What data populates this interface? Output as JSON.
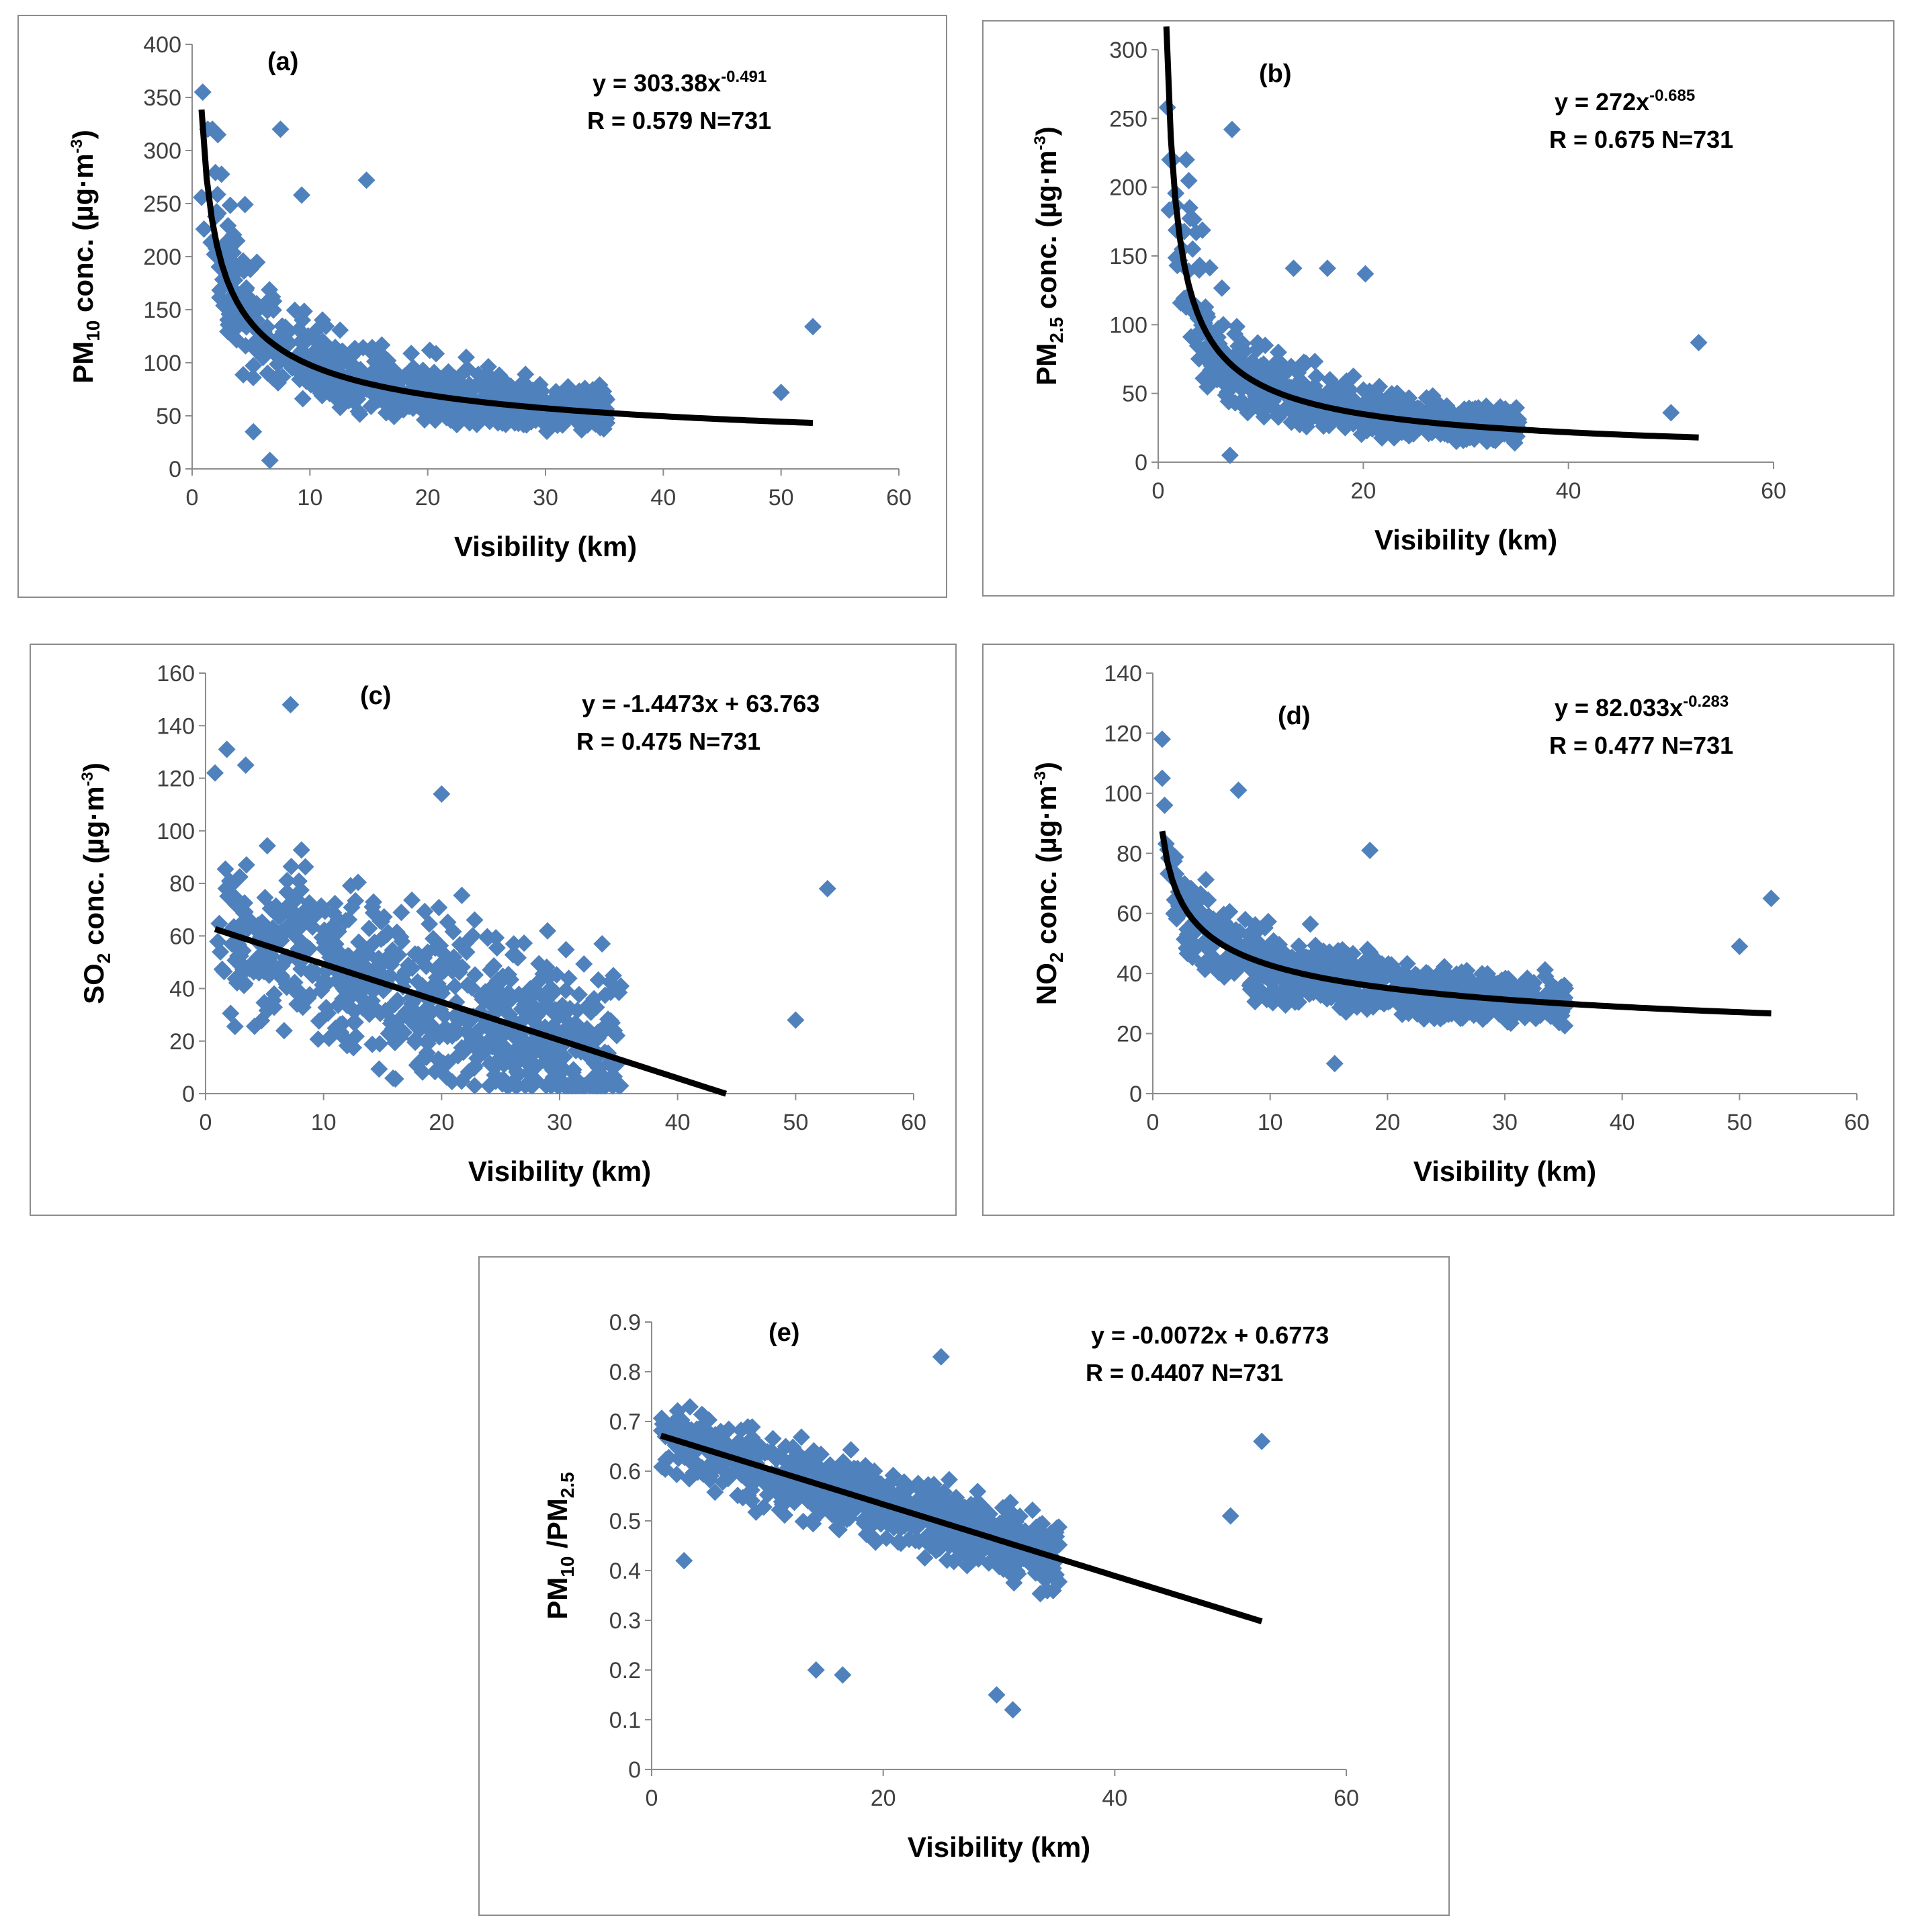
{
  "colors": {
    "marker": "#4f81bd",
    "fit": "#000000",
    "axis": "#8c8c8c"
  },
  "chart_data": [
    {
      "id": "a",
      "type": "scatter",
      "panel_label": "(a)",
      "xlabel": "Visibility (km)",
      "ylabel": {
        "prefix": "PM",
        "sub": "10",
        "rest": " conc. (µg·m",
        "sup": "-3",
        "end": ")"
      },
      "xlim": [
        0,
        60
      ],
      "xticks": [
        0,
        10,
        20,
        30,
        40,
        50,
        60
      ],
      "ylim": [
        0,
        400
      ],
      "yticks": [
        0,
        50,
        100,
        150,
        200,
        250,
        300,
        350,
        400
      ],
      "equation": {
        "main": "y = 303.38x",
        "sup": "-0.491"
      },
      "stats": "R = 0.579  N=731",
      "fit": {
        "kind": "power",
        "a": 303.38,
        "b": -0.491,
        "xmin": 0.8,
        "xmax": 52.7
      },
      "cloud": {
        "n": 731,
        "seed": 11,
        "kind": "power",
        "a": 303.38,
        "b": -0.491,
        "noise": 0.34,
        "ymin": 8,
        "ymax": 320
      },
      "extra_points": [
        [
          0.9,
          355
        ],
        [
          7.5,
          320
        ],
        [
          14.8,
          272
        ],
        [
          9.3,
          258
        ],
        [
          50,
          72
        ],
        [
          52.7,
          134
        ],
        [
          6.6,
          8
        ],
        [
          5.2,
          35
        ]
      ]
    },
    {
      "id": "b",
      "type": "scatter",
      "panel_label": "(b)",
      "xlabel": "Visibility (km)",
      "ylabel": {
        "prefix": "PM",
        "sub": "2.5",
        "rest": " conc. (µg·m",
        "sup": "-3",
        "end": ")"
      },
      "xlim": [
        0,
        60
      ],
      "xticks": [
        0,
        20,
        40,
        60
      ],
      "ylim": [
        0,
        300
      ],
      "yticks": [
        0,
        50,
        100,
        150,
        200,
        250,
        300
      ],
      "equation": {
        "main": "y = 272x",
        "sup": "-0.685"
      },
      "stats": "R = 0.675  N=731",
      "fit": {
        "kind": "power",
        "a": 272,
        "b": -0.685,
        "xmin": 0.8,
        "xmax": 52.7
      },
      "cloud": {
        "n": 731,
        "seed": 23,
        "kind": "power",
        "a": 272,
        "b": -0.685,
        "noise": 0.42,
        "ymin": 6,
        "ymax": 220
      },
      "extra_points": [
        [
          0.9,
          258
        ],
        [
          7.2,
          242
        ],
        [
          50,
          36
        ],
        [
          52.7,
          87
        ],
        [
          7,
          5
        ],
        [
          16.5,
          141
        ],
        [
          20.2,
          137
        ],
        [
          13.2,
          141
        ]
      ]
    },
    {
      "id": "c",
      "type": "scatter",
      "panel_label": "(c)",
      "xlabel": "Visibility (km)",
      "ylabel": {
        "prefix": "SO",
        "sub": "2",
        "rest": " conc. (µg·m",
        "sup": "-3",
        "end": ")"
      },
      "xlim": [
        0,
        60
      ],
      "xticks": [
        0,
        10,
        20,
        30,
        40,
        50,
        60
      ],
      "ylim": [
        0,
        160
      ],
      "yticks": [
        0,
        20,
        40,
        60,
        80,
        100,
        120,
        140,
        160
      ],
      "equation": {
        "main": "y = -1.4473x + 63.763",
        "sup": ""
      },
      "stats": "R = 0.475  N=731",
      "fit": {
        "kind": "linear",
        "a": -1.4473,
        "b": 63.763,
        "xmin": 0.8,
        "xmax": 44.1
      },
      "cloud": {
        "n": 731,
        "seed": 37,
        "kind": "linear",
        "a": -1.4473,
        "b": 63.763,
        "noise": 0.5,
        "ymin": 3,
        "ymax": 120
      },
      "extra_points": [
        [
          7.2,
          148
        ],
        [
          0.8,
          122
        ],
        [
          1.8,
          131
        ],
        [
          3.4,
          125
        ],
        [
          20,
          114
        ],
        [
          50,
          28
        ],
        [
          52.7,
          78
        ],
        [
          33.6,
          57
        ]
      ]
    },
    {
      "id": "d",
      "type": "scatter",
      "panel_label": "(d)",
      "xlabel": "Visibility (km)",
      "ylabel": {
        "prefix": "NO",
        "sub": "2",
        "rest": " conc. (µg·m",
        "sup": "-3",
        "end": ")"
      },
      "xlim": [
        0,
        60
      ],
      "xticks": [
        0,
        10,
        20,
        30,
        40,
        50,
        60
      ],
      "ylim": [
        0,
        140
      ],
      "yticks": [
        0,
        20,
        40,
        60,
        80,
        100,
        120,
        140
      ],
      "equation": {
        "main": "y = 82.033x",
        "sup": "-0.283"
      },
      "stats": "R = 0.477  N=731",
      "fit": {
        "kind": "power",
        "a": 82.033,
        "b": -0.283,
        "xmin": 0.8,
        "xmax": 52.7
      },
      "cloud": {
        "n": 731,
        "seed": 53,
        "kind": "power",
        "a": 82.033,
        "b": -0.283,
        "noise": 0.24,
        "ymin": 9,
        "ymax": 96
      },
      "extra_points": [
        [
          0.8,
          118
        ],
        [
          0.8,
          105
        ],
        [
          7.3,
          101
        ],
        [
          18.5,
          81
        ],
        [
          50,
          49
        ],
        [
          52.7,
          65
        ],
        [
          15.5,
          10
        ]
      ]
    },
    {
      "id": "e",
      "type": "scatter",
      "panel_label": "(e)",
      "xlabel": "Visibility (km)",
      "ylabel": {
        "prefix": "PM",
        "sub": "10",
        "rest": " /PM",
        "sup": "",
        "end": "",
        "sub2": "2.5"
      },
      "xlim": [
        0,
        60
      ],
      "xticks": [
        0,
        20,
        40,
        60
      ],
      "ylim": [
        0,
        0.9
      ],
      "yticks": [
        0,
        0.1,
        0.2,
        0.3,
        0.4,
        0.5,
        0.6,
        0.7,
        0.8,
        0.9
      ],
      "equation": {
        "main": "y = -0.0072x + 0.6773",
        "sup": ""
      },
      "stats": "R = 0.4407  N=731",
      "fit": {
        "kind": "linear",
        "a": -0.0072,
        "b": 0.6773,
        "xmin": 0.8,
        "xmax": 52.7
      },
      "cloud": {
        "n": 731,
        "seed": 71,
        "kind": "linear",
        "a": -0.0072,
        "b": 0.6773,
        "noise": 0.2,
        "ymin": 0.18,
        "ymax": 0.83
      },
      "extra_points": [
        [
          50,
          0.51
        ],
        [
          52.7,
          0.66
        ],
        [
          25,
          0.83
        ],
        [
          29.8,
          0.15
        ],
        [
          31.2,
          0.12
        ],
        [
          14.2,
          0.2
        ],
        [
          16.5,
          0.19
        ],
        [
          2.8,
          0.42
        ]
      ]
    }
  ]
}
